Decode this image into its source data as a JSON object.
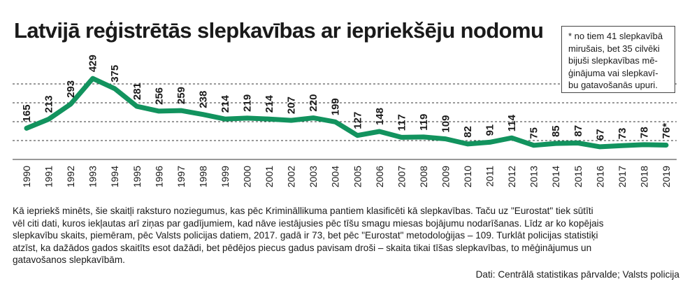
{
  "title": "Latvijā reģistrētās slepkavības ar iepriekšēju nodomu",
  "note": {
    "lines": [
      "* no tiem 41 slepkavībā",
      "mirušais, bet 35 cilvēki",
      "bijuši slepkavības mē-",
      "ģinājuma vai slepkavī-",
      "bu gatavošanās upuri."
    ]
  },
  "description": {
    "lines": [
      "Kā iepriekš minēts, šie skaitļi raksturo noziegumus, kas pēc Krimināllikuma pantiem klasificēti kā slepkavības. Taču uz \"Eurostat\" tiek sūtīti",
      "vēl citi dati, kuros iekļautas arī ziņas par gadījumiem, kad nāve iestājusies pēc tīšu smagu miesas bojājumu nodarīšanas. Līdz ar ko kopējais",
      "slepkavību skaits, piemēram, pēc Valsts policijas datiem, 2017. gadā ir 73, bet pēc \"Eurostat\" metodoloģijas – 109. Turklāt policijas statistiķi",
      "atzīst, ka dažādos gados skaitīts esot dažādi, bet pēdējos piecus gadus pavisam droši – skaita tikai tīšas slepkavības, to mēģinājumus un",
      "gatavošanos slepkavībām."
    ]
  },
  "source": "Dati: Centrālā statistikas pārvalde; Valsts policija",
  "colors": {
    "line": "#12935e",
    "grid": "#333333",
    "text": "#1a1a1a"
  },
  "chart_data": {
    "type": "line",
    "title": "Latvijā reģistrētās slepkavības ar iepriekšēju nodomu",
    "xlabel": "",
    "ylabel": "",
    "grid": true,
    "ylim": [
      0,
      450
    ],
    "categories": [
      "1990",
      "1991",
      "1992",
      "1993",
      "1994",
      "1995",
      "1996",
      "1997",
      "1998",
      "1999",
      "2000",
      "2001",
      "2002",
      "2003",
      "2004",
      "2005",
      "2006",
      "2007",
      "2008",
      "2009",
      "2010",
      "2011",
      "2012",
      "2013",
      "2014",
      "2015",
      "2016",
      "2017",
      "2018",
      "2019"
    ],
    "values": [
      165,
      213,
      293,
      429,
      375,
      281,
      256,
      259,
      238,
      214,
      219,
      214,
      207,
      220,
      199,
      127,
      148,
      117,
      119,
      109,
      82,
      91,
      114,
      75,
      85,
      87,
      67,
      73,
      78,
      76
    ],
    "data_labels": [
      "165",
      "213",
      "293",
      "429",
      "375",
      "281",
      "256",
      "259",
      "238",
      "214",
      "219",
      "214",
      "207",
      "220",
      "199",
      "127",
      "148",
      "117",
      "119",
      "109",
      "82",
      "91",
      "114",
      "75",
      "85",
      "87",
      "67",
      "73",
      "78",
      "76*"
    ]
  }
}
